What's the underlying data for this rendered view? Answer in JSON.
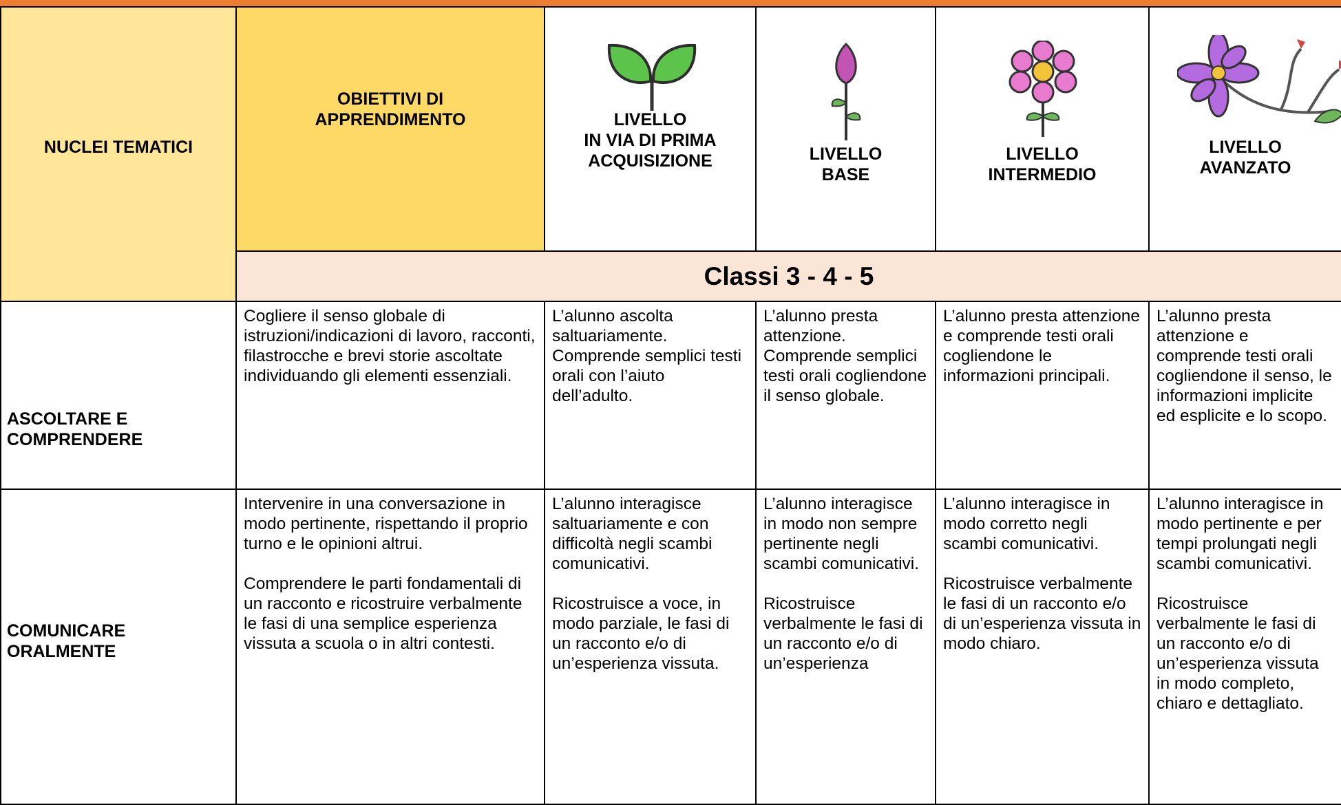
{
  "header": {
    "nuclei": "NUCLEI TEMATICI",
    "obiettivi": "OBIETTIVI DI\nAPPRENDIMENTO",
    "levels": [
      "LIVELLO\nIN VIA DI PRIMA\nACQUISIZIONE",
      "LIVELLO\nBASE",
      "LIVELLO\nINTERMEDIO",
      "LIVELLO\nAVANZATO"
    ],
    "classi": "Classi 3 - 4 - 5"
  },
  "rows": [
    {
      "nucleo": "ASCOLTARE E\nCOMPRENDERE",
      "cells": [
        [
          "Cogliere il senso globale di istruzioni/indicazioni di lavoro, racconti, filastrocche e brevi storie ascoltate individuando gli elementi essenziali."
        ],
        [
          "L’alunno ascolta saltuariamente. Comprende semplici testi orali con l’aiuto dell’adulto."
        ],
        [
          "L’alunno presta attenzione. Comprende semplici testi orali cogliendone il senso globale."
        ],
        [
          "L’alunno presta attenzione e comprende testi orali cogliendone le informazioni principali."
        ],
        [
          "L’alunno presta attenzione e comprende testi orali cogliendone il senso, le informazioni implicite ed esplicite e lo scopo."
        ]
      ]
    },
    {
      "nucleo": "COMUNICARE\nORALMENTE",
      "cells": [
        [
          "Intervenire in una conversazione in modo pertinente, rispettando il proprio turno e le opinioni altrui.",
          "Comprendere le parti fondamentali di un racconto e ricostruire verbalmente le fasi di una semplice esperienza vissuta a scuola o in altri contesti."
        ],
        [
          "L’alunno interagisce saltuariamente e con difficoltà negli scambi comunicativi.",
          "Ricostruisce a voce, in modo parziale, le fasi di un racconto e/o di un’esperienza vissuta."
        ],
        [
          "L’alunno interagisce in modo non sempre pertinente negli scambi comunicativi.",
          "Ricostruisce verbalmente le fasi di un racconto e/o di un’esperienza"
        ],
        [
          "L’alunno interagisce in modo corretto negli scambi comunicativi.",
          "Ricostruisce verbalmente le fasi di un racconto e/o di un’esperienza vissuta in modo chiaro."
        ],
        [
          "L’alunno interagisce in modo pertinente e per tempi prolungati negli scambi comunicativi.",
          "Ricostruisce verbalmente le fasi di un racconto e/o di un’esperienza vissuta in modo completo, chiaro e dettagliato."
        ]
      ]
    }
  ]
}
